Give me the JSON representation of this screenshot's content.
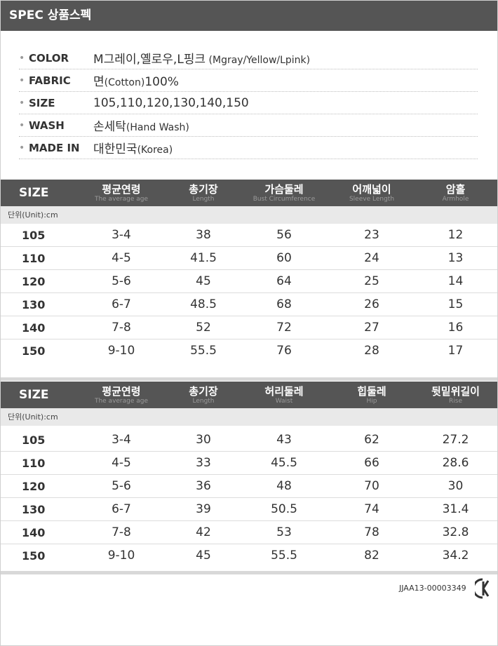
{
  "spec_header": {
    "title": "SPEC 상품스펙"
  },
  "info": [
    {
      "label": "COLOR",
      "value": "M그레이,옐로우,L핑크",
      "note": " (Mgray/Yellow/Lpink)"
    },
    {
      "label": "FABRIC",
      "value": "면",
      "note": "(Cotton)",
      "value_tail": "100%"
    },
    {
      "label": "SIZE",
      "value": "105,110,120,130,140,150",
      "note": ""
    },
    {
      "label": "WASH",
      "value": "손세탁",
      "note": "(Hand Wash)"
    },
    {
      "label": "MADE IN",
      "value": "대한민국",
      "note": "(Korea)"
    }
  ],
  "tables": [
    {
      "headers": [
        {
          "ko": "SIZE",
          "en": ""
        },
        {
          "ko": "평균연령",
          "en": "The average age"
        },
        {
          "ko": "총기장",
          "en": "Length"
        },
        {
          "ko": "가슴둘레",
          "en": "Bust Circumference"
        },
        {
          "ko": "어깨넓이",
          "en": "Sleeve Length"
        },
        {
          "ko": "암홀",
          "en": "Armhole"
        }
      ],
      "unit": "단위(Unit):cm",
      "rows": [
        [
          "105",
          "3-4",
          "38",
          "56",
          "23",
          "12"
        ],
        [
          "110",
          "4-5",
          "41.5",
          "60",
          "24",
          "13"
        ],
        [
          "120",
          "5-6",
          "45",
          "64",
          "25",
          "14"
        ],
        [
          "130",
          "6-7",
          "48.5",
          "68",
          "26",
          "15"
        ],
        [
          "140",
          "7-8",
          "52",
          "72",
          "27",
          "16"
        ],
        [
          "150",
          "9-10",
          "55.5",
          "76",
          "28",
          "17"
        ]
      ]
    },
    {
      "headers": [
        {
          "ko": "SIZE",
          "en": ""
        },
        {
          "ko": "평균연령",
          "en": "The average age"
        },
        {
          "ko": "총기장",
          "en": "Length"
        },
        {
          "ko": "허리둘레",
          "en": "Waist"
        },
        {
          "ko": "힙둘레",
          "en": "Hip"
        },
        {
          "ko": "뒷밑위길이",
          "en": "Rise"
        }
      ],
      "unit": "단위(Unit):cm",
      "rows": [
        [
          "105",
          "3-4",
          "30",
          "43",
          "62",
          "27.2"
        ],
        [
          "110",
          "4-5",
          "33",
          "45.5",
          "66",
          "28.6"
        ],
        [
          "120",
          "5-6",
          "36",
          "48",
          "70",
          "30"
        ],
        [
          "130",
          "6-7",
          "39",
          "50.5",
          "74",
          "31.4"
        ],
        [
          "140",
          "7-8",
          "42",
          "53",
          "78",
          "32.8"
        ],
        [
          "150",
          "9-10",
          "45",
          "55.5",
          "82",
          "34.2"
        ]
      ]
    }
  ],
  "certification": {
    "code": "JJAA13-00003349",
    "mark": "kc-mark-icon"
  },
  "colors": {
    "header_bg": "#555555",
    "unit_bg": "#e9e9e9",
    "divider": "#d8d8d8"
  }
}
